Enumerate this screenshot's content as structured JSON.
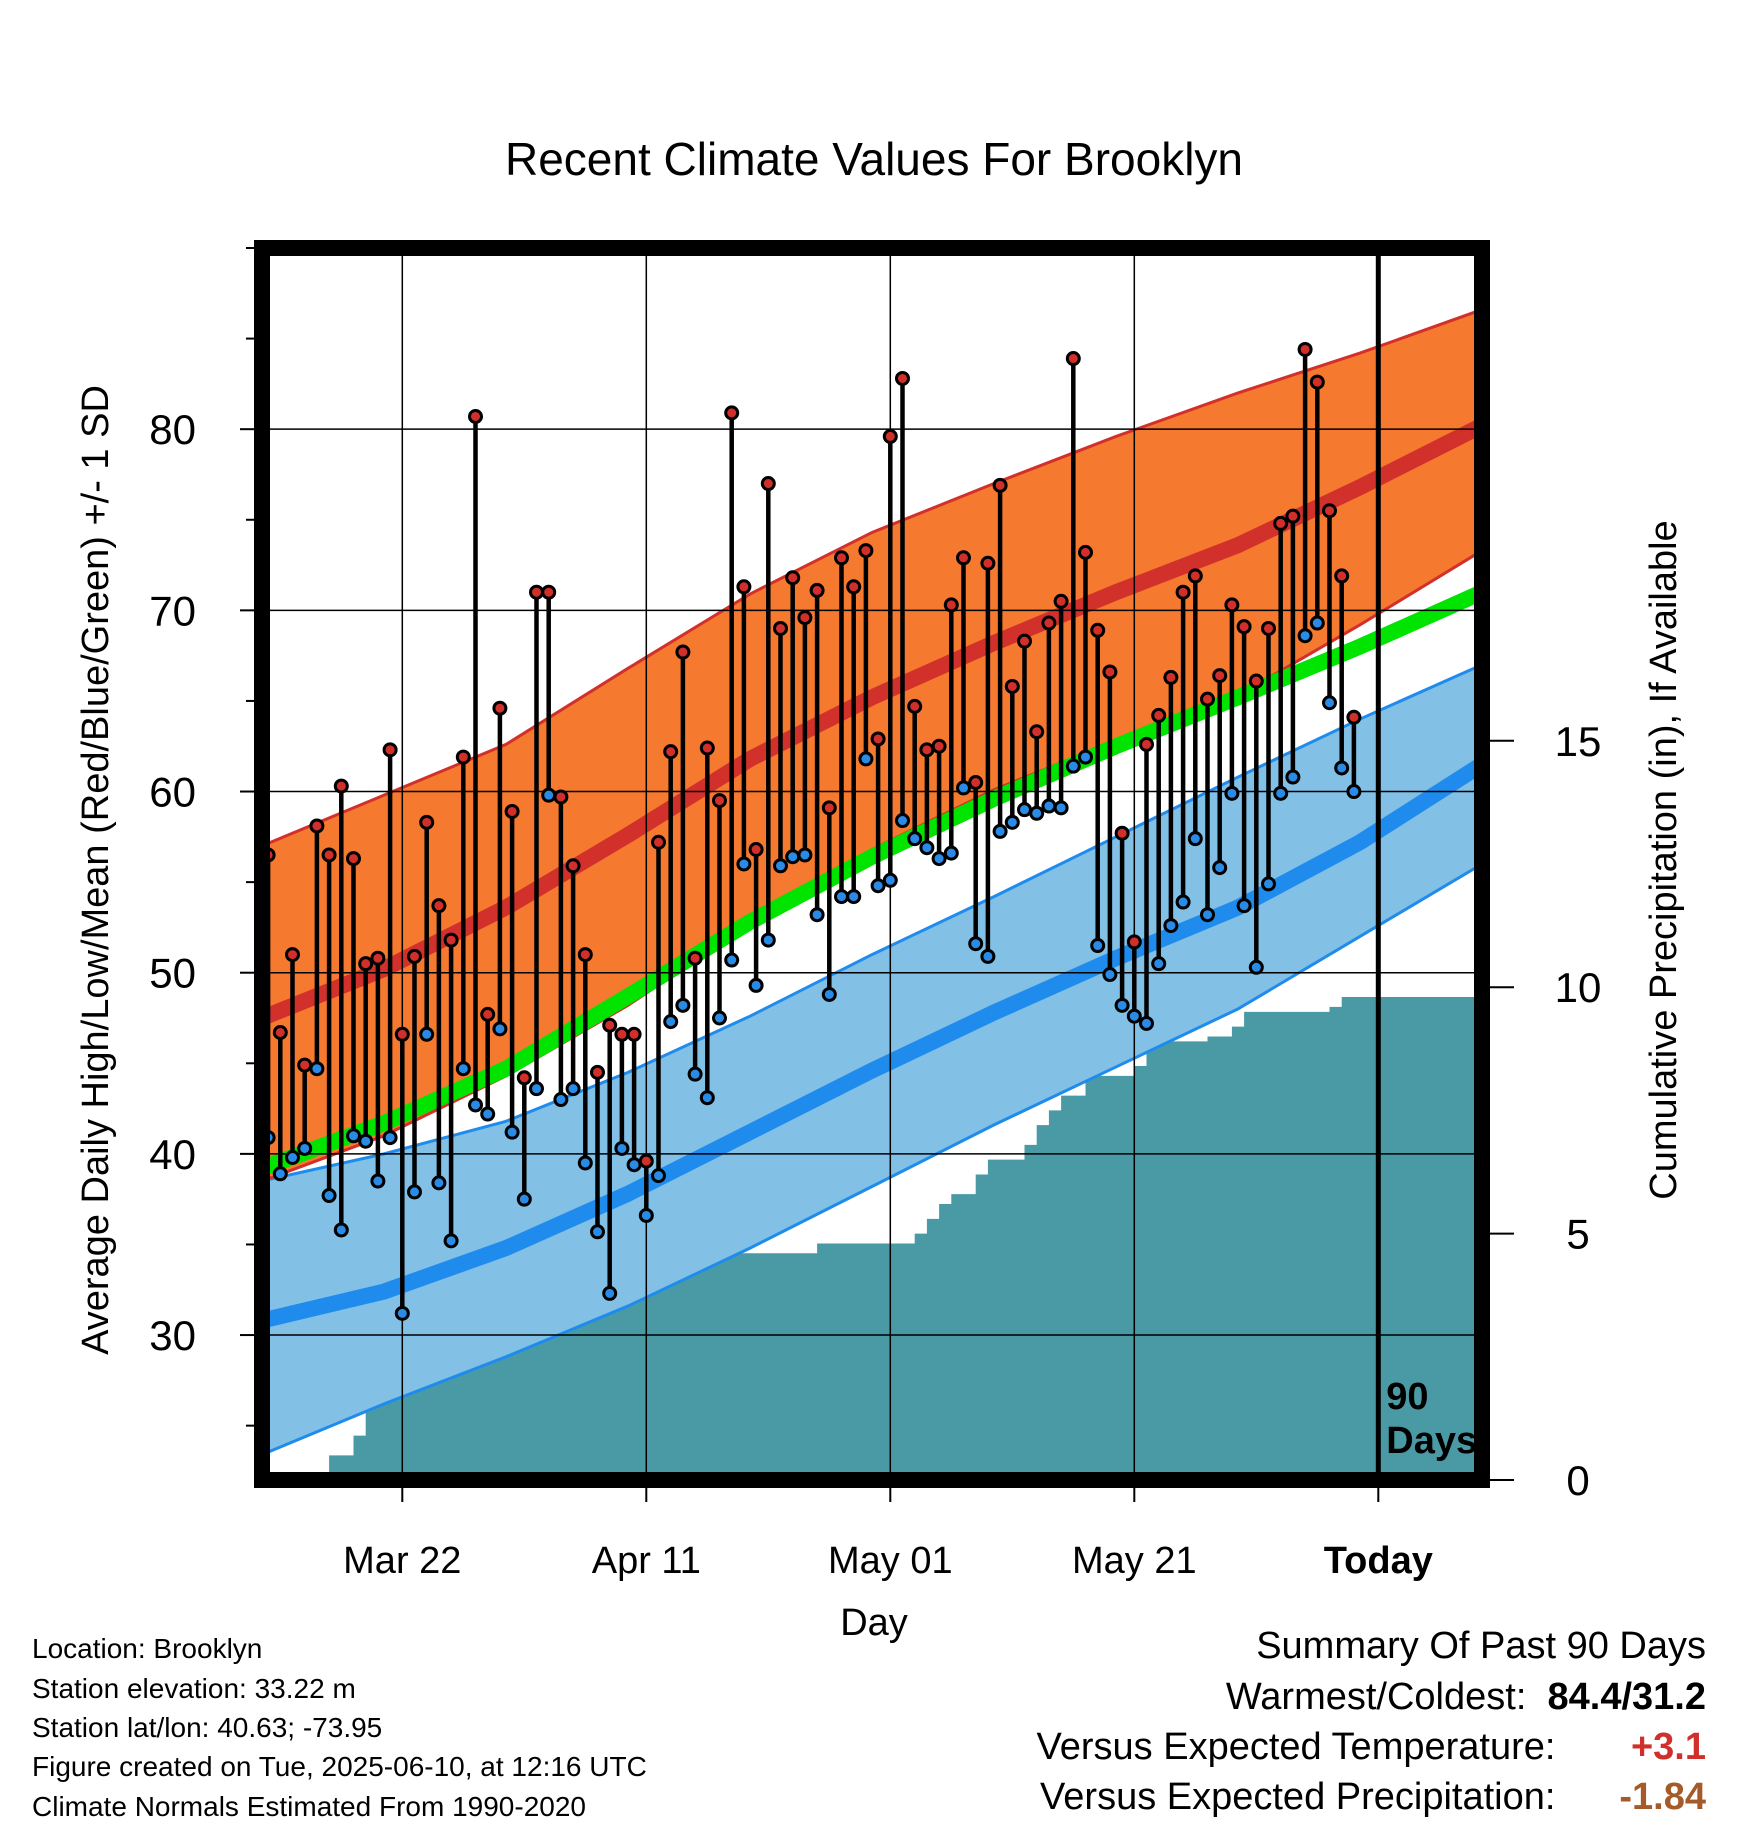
{
  "chart_data": {
    "type": "line",
    "title": "Recent Climate Values For Brooklyn",
    "xlabel": "Day",
    "ylabel_left": "Average Daily High/Low/Mean (Red/Blue/Green) +/- 1 SD",
    "ylabel_right": "Cumulative Precipitation (in), If Available",
    "x_range_days": [
      0,
      100
    ],
    "x_ticks": [
      {
        "day": 11.5,
        "label": "Mar 22"
      },
      {
        "day": 31.5,
        "label": "Apr 11"
      },
      {
        "day": 51.5,
        "label": "May 01"
      },
      {
        "day": 71.5,
        "label": "May 21"
      },
      {
        "day": 91.5,
        "label": "Today",
        "bold": true
      }
    ],
    "today_marker": {
      "day": 91.5,
      "label_line1": "90",
      "label_line2": "Days"
    },
    "y_left_ticks": [
      30,
      40,
      50,
      60,
      70,
      80
    ],
    "y_left_range": [
      22,
      90
    ],
    "y_right_ticks": [
      0,
      5,
      10,
      15
    ],
    "y_right_range": [
      0,
      25
    ],
    "normals": {
      "x": [
        0,
        10,
        20,
        30,
        40,
        50,
        60,
        70,
        80,
        90,
        100
      ],
      "high_upper": [
        57.0,
        59.8,
        62.6,
        66.8,
        70.9,
        74.3,
        77.0,
        79.6,
        82.0,
        84.2,
        86.6
      ],
      "high_mean": [
        47.5,
        50.2,
        53.6,
        57.6,
        61.8,
        65.2,
        68.2,
        71.0,
        73.6,
        76.8,
        80.2
      ],
      "high_lower": [
        38.5,
        41.0,
        44.3,
        48.2,
        52.7,
        56.8,
        60.1,
        62.8,
        65.3,
        69.2,
        73.3
      ],
      "mean": [
        39.2,
        41.7,
        44.7,
        48.7,
        52.8,
        56.4,
        59.6,
        62.5,
        65.2,
        68.0,
        71.0
      ],
      "low_upper": [
        38.5,
        40.0,
        41.8,
        44.5,
        47.6,
        51.0,
        54.2,
        57.5,
        60.8,
        64.0,
        67.0
      ],
      "low_mean": [
        30.8,
        32.4,
        34.8,
        37.8,
        41.2,
        44.6,
        47.8,
        50.8,
        53.6,
        57.2,
        61.5
      ],
      "low_lower": [
        23.4,
        26.2,
        28.8,
        31.6,
        34.8,
        38.2,
        41.6,
        44.8,
        48.0,
        52.0,
        56.0
      ]
    },
    "daily": {
      "start_day": 0,
      "high": [
        56.5,
        46.7,
        51.0,
        44.9,
        58.1,
        56.5,
        60.3,
        56.3,
        50.5,
        50.8,
        62.3,
        46.6,
        50.9,
        58.3,
        53.7,
        51.8,
        61.9,
        80.7,
        47.7,
        64.6,
        58.9,
        44.2,
        71.0,
        71.0,
        59.7,
        55.9,
        51.0,
        44.5,
        47.1,
        46.6,
        46.6,
        39.6,
        57.2,
        62.2,
        67.7,
        50.8,
        62.4,
        59.5,
        80.9,
        71.3,
        56.8,
        77.0,
        69.0,
        71.8,
        69.6,
        71.1,
        59.1,
        72.9,
        71.3,
        73.3,
        62.9,
        79.6,
        82.8,
        64.7,
        62.3,
        62.5,
        70.3,
        72.9,
        60.5,
        72.6,
        76.9,
        65.8,
        68.3,
        63.3,
        69.3,
        70.5,
        83.9,
        73.2,
        68.9,
        66.6,
        57.7,
        51.7,
        62.6,
        64.2,
        66.3,
        71.0,
        71.9,
        65.1,
        66.4,
        70.3,
        69.1,
        66.1,
        69.0,
        74.8,
        75.2,
        84.4,
        82.6,
        75.5,
        71.9,
        64.1
      ],
      "low": [
        40.9,
        38.9,
        39.8,
        40.3,
        44.7,
        37.7,
        35.8,
        41.0,
        40.7,
        38.5,
        40.9,
        31.2,
        37.9,
        46.6,
        38.4,
        35.2,
        44.7,
        42.7,
        42.2,
        46.9,
        41.2,
        37.5,
        43.6,
        59.8,
        43.0,
        43.6,
        39.5,
        35.7,
        32.3,
        40.3,
        39.4,
        36.6,
        38.8,
        47.3,
        48.2,
        44.4,
        43.1,
        47.5,
        50.7,
        56.0,
        49.3,
        51.8,
        55.9,
        56.4,
        56.5,
        53.2,
        48.8,
        54.2,
        54.2,
        61.8,
        54.8,
        55.1,
        58.4,
        57.4,
        56.9,
        56.3,
        56.6,
        60.2,
        51.6,
        50.9,
        57.8,
        58.3,
        59.0,
        58.8,
        59.2,
        59.1,
        61.4,
        61.9,
        51.5,
        49.9,
        48.2,
        47.6,
        47.2,
        50.5,
        52.6,
        53.9,
        57.4,
        53.2,
        55.8,
        59.9,
        53.7,
        50.3,
        54.9,
        59.9,
        60.8,
        68.6,
        69.3,
        64.9,
        61.3,
        60.0
      ]
    },
    "precip_cumulative": {
      "x": [
        5.5,
        5.5,
        7.5,
        7.5,
        8.5,
        8.5,
        10.5,
        10.5,
        11.5,
        11.5,
        12.5,
        12.5,
        13.5,
        13.5,
        18.5,
        18.5,
        19.5,
        19.5,
        20.5,
        20.5,
        22.5,
        22.5,
        24.5,
        24.5,
        26.5,
        26.5,
        28.5,
        28.5,
        29.5,
        29.5,
        30.5,
        30.5,
        31.5,
        31.5,
        32.5,
        32.5,
        45.5,
        45.5,
        53.5,
        53.5,
        54.5,
        54.5,
        55.5,
        55.5,
        56.5,
        56.5,
        58.5,
        58.5,
        59.5,
        59.5,
        62.5,
        62.5,
        63.5,
        63.5,
        64.5,
        64.5,
        65.5,
        65.5,
        67.5,
        67.5,
        71.5,
        71.5,
        72.5,
        72.5,
        77.5,
        77.5,
        79.5,
        79.5,
        80.5,
        80.5,
        87.5,
        87.5,
        88.5,
        88.5,
        100
      ],
      "y": [
        0,
        0.5,
        0.5,
        0.9,
        0.9,
        1.7,
        1.7,
        1.8,
        1.8,
        2.1,
        2.1,
        2.3,
        2.3,
        2.6,
        2.6,
        2.7,
        2.7,
        3.1,
        3.1,
        3.3,
        3.3,
        3.4,
        3.4,
        3.5,
        3.5,
        3.6,
        3.6,
        3.6,
        3.6,
        3.8,
        3.8,
        4.1,
        4.1,
        4.4,
        4.4,
        4.6,
        4.6,
        4.8,
        4.8,
        5.0,
        5.0,
        5.3,
        5.3,
        5.6,
        5.6,
        5.8,
        5.8,
        6.2,
        6.2,
        6.5,
        6.5,
        6.8,
        6.8,
        7.2,
        7.2,
        7.5,
        7.5,
        7.8,
        7.8,
        8.2,
        8.2,
        8.4,
        8.4,
        8.9,
        8.9,
        9.0,
        9.0,
        9.2,
        9.2,
        9.5,
        9.5,
        9.6,
        9.6,
        9.8,
        9.8
      ]
    }
  },
  "colors": {
    "high_band": "#f5792f",
    "high_mean": "#d2312b",
    "mean": "#00e400",
    "low_band": "#82c0e6",
    "low_mean": "#1f8ced",
    "precip": "#4a9aa5",
    "high_dot": "#d12f2a",
    "low_dot": "#2a8be6"
  },
  "location": {
    "name_line": "Location: Brooklyn",
    "elevation_line": "Station elevation: 33.22 m",
    "latlon_line": "Station lat/lon: 40.63; -73.95",
    "created_line": "Figure created on Tue, 2025-06-10, at 12:16 UTC",
    "normals_line": "Climate Normals Estimated From 1990-2020"
  },
  "summary": {
    "heading": "Summary Of Past 90 Days",
    "warm_cold_label": "Warmest/Coldest:",
    "warm_cold_value": "84.4/31.2",
    "temp_label": "Versus Expected Temperature:",
    "temp_value": "+3.1",
    "temp_color": "#d12f2a",
    "precip_label": "Versus Expected Precipitation:",
    "precip_value": "-1.84",
    "precip_color": "#a55a2a"
  }
}
